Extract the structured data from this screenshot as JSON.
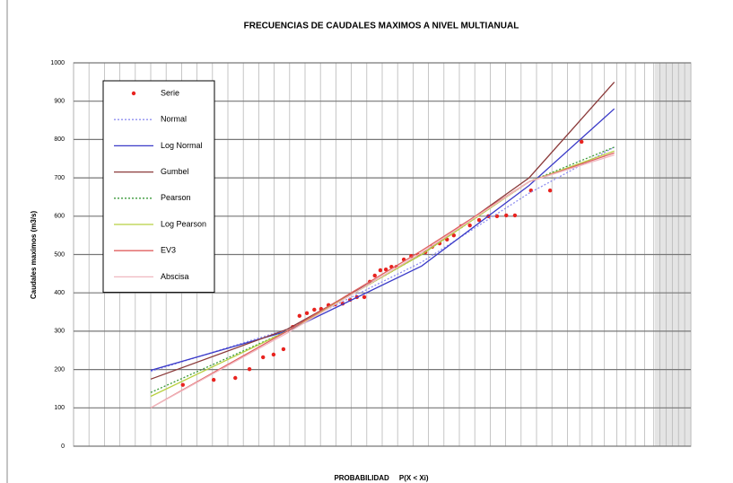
{
  "chart_data": {
    "type": "line",
    "title": "FRECUENCIAS DE CAUDALES  MAXIMOS A NIVEL MULTIANUAL",
    "x_label": "PROBABILIDAD     P(X < Xi)",
    "y_label": "Caudales maximos (m3/s)",
    "xlim": [
      0,
      100
    ],
    "xticks": [
      0,
      2.5,
      5,
      7.5,
      10,
      12.5,
      15,
      17.5,
      20,
      22.5,
      25,
      27.5,
      30,
      32.5,
      35,
      37.5,
      40,
      42.5,
      45,
      47.5,
      50,
      52.5,
      55,
      57.5,
      60,
      62.5,
      65,
      67.5,
      70,
      72.5,
      75,
      77.5,
      80,
      82,
      84,
      86,
      88,
      89.5,
      91,
      92.5,
      94,
      95,
      96,
      97,
      98,
      99,
      100
    ],
    "ylim": [
      0,
      1000
    ],
    "yticks": [
      0,
      100,
      200,
      300,
      400,
      500,
      600,
      700,
      800,
      900,
      1000
    ],
    "grid": true,
    "legend": "upper left",
    "series": [
      {
        "name": "Serie",
        "color": "#e8231f",
        "style": "markers",
        "x": [
          17.7,
          22.7,
          26.2,
          28.5,
          30.7,
          32.4,
          34.0,
          35.5,
          36.6,
          37.8,
          39.0,
          40.1,
          41.3,
          42.4,
          43.6,
          44.8,
          45.9,
          47.1,
          48.0,
          48.8,
          49.7,
          50.6,
          51.5,
          52.3,
          53.5,
          54.7,
          55.8,
          57.0,
          58.1,
          59.3,
          60.5,
          61.6,
          62.8,
          64.2,
          65.7,
          67.2,
          68.6,
          70.1,
          71.5,
          74.1,
          77.2,
          82.3
        ],
        "values": [
          160,
          173,
          178,
          201,
          232,
          239,
          253,
          311,
          340,
          347,
          356,
          358,
          368,
          370,
          372,
          382,
          389,
          389,
          429,
          445,
          459,
          461,
          468,
          468,
          487,
          496,
          499,
          506,
          520,
          529,
          539,
          550,
          574,
          576,
          590,
          600,
          600,
          602,
          602,
          667,
          667,
          794
        ]
      },
      {
        "name": "Normal",
        "color": "#8f8ff0",
        "style": "dotted",
        "x": [
          12.5,
          34.6,
          56.4,
          73.8,
          87.6
        ],
        "values": [
          195,
          305,
          480,
          660,
          780
        ]
      },
      {
        "name": "Log Normal",
        "color": "#3a3ac8",
        "style": "solid",
        "x": [
          12.5,
          34.6,
          56.4,
          73.8,
          87.6
        ],
        "values": [
          198,
          300,
          470,
          680,
          880
        ]
      },
      {
        "name": "Gumbel",
        "color": "#8b3a3a",
        "style": "solid",
        "x": [
          12.5,
          34.6,
          56.4,
          73.8,
          87.6
        ],
        "values": [
          175,
          305,
          500,
          700,
          950
        ]
      },
      {
        "name": "Pearson",
        "color": "#3a9a3a",
        "style": "dotted",
        "x": [
          12.5,
          34.6,
          56.4,
          73.8,
          87.6
        ],
        "values": [
          140,
          300,
          500,
          690,
          780
        ]
      },
      {
        "name": "Log Pearson",
        "color": "#b8d040",
        "style": "solid",
        "x": [
          12.5,
          34.6,
          56.4,
          73.8,
          87.6
        ],
        "values": [
          130,
          300,
          500,
          690,
          770
        ]
      },
      {
        "name": "EV3",
        "color": "#e06060",
        "style": "solid",
        "x": [
          12.5,
          34.6,
          56.4,
          73.8,
          87.6
        ],
        "values": [
          100,
          300,
          510,
          690,
          765
        ]
      },
      {
        "name": "Abscisa",
        "color": "#f0b8c0",
        "style": "solid",
        "x": [
          12.5,
          34.6,
          56.4,
          73.8,
          87.6
        ],
        "values": [
          100,
          295,
          505,
          690,
          760
        ]
      }
    ]
  }
}
